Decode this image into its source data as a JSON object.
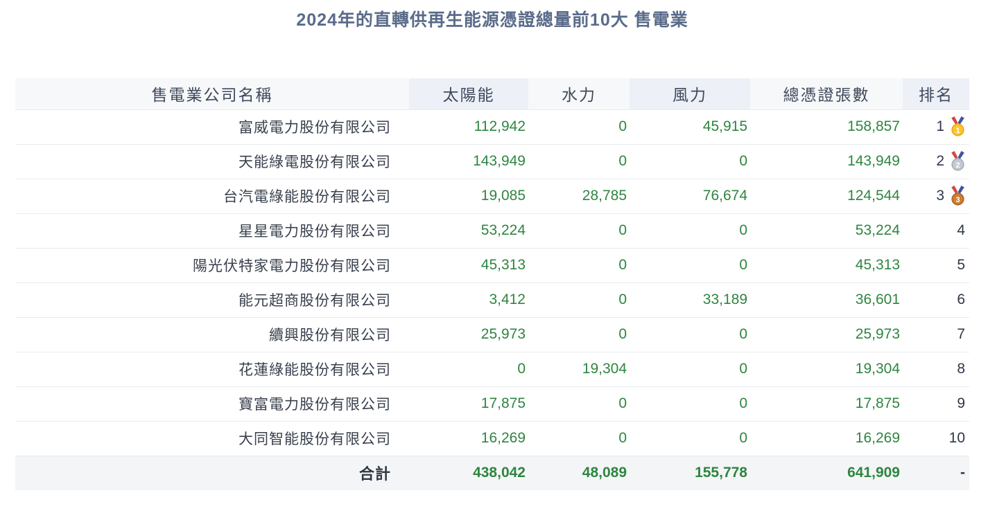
{
  "title": "2024年的直轉供再生能源憑證總量前10大 售電業",
  "chart_data": {
    "type": "table",
    "title": "2024年的直轉供再生能源憑證總量前10大 售電業",
    "columns": [
      "售電業公司名稱",
      "太陽能",
      "水力",
      "風力",
      "總憑證張數",
      "排名"
    ],
    "rows": [
      {
        "company": "富威電力股份有限公司",
        "solar": 112942,
        "hydro": 0,
        "wind": 45915,
        "total": 158857,
        "rank": 1,
        "medal": "gold"
      },
      {
        "company": "天能綠電股份有限公司",
        "solar": 143949,
        "hydro": 0,
        "wind": 0,
        "total": 143949,
        "rank": 2,
        "medal": "silver"
      },
      {
        "company": "台汽電綠能股份有限公司",
        "solar": 19085,
        "hydro": 28785,
        "wind": 76674,
        "total": 124544,
        "rank": 3,
        "medal": "bronze"
      },
      {
        "company": "星星電力股份有限公司",
        "solar": 53224,
        "hydro": 0,
        "wind": 0,
        "total": 53224,
        "rank": 4,
        "medal": null
      },
      {
        "company": "陽光伏特家電力股份有限公司",
        "solar": 45313,
        "hydro": 0,
        "wind": 0,
        "total": 45313,
        "rank": 5,
        "medal": null
      },
      {
        "company": "能元超商股份有限公司",
        "solar": 3412,
        "hydro": 0,
        "wind": 33189,
        "total": 36601,
        "rank": 6,
        "medal": null
      },
      {
        "company": "續興股份有限公司",
        "solar": 25973,
        "hydro": 0,
        "wind": 0,
        "total": 25973,
        "rank": 7,
        "medal": null
      },
      {
        "company": "花蓮綠能股份有限公司",
        "solar": 0,
        "hydro": 19304,
        "wind": 0,
        "total": 19304,
        "rank": 8,
        "medal": null
      },
      {
        "company": "寶富電力股份有限公司",
        "solar": 17875,
        "hydro": 0,
        "wind": 0,
        "total": 17875,
        "rank": 9,
        "medal": null
      },
      {
        "company": "大同智能股份有限公司",
        "solar": 16269,
        "hydro": 0,
        "wind": 0,
        "total": 16269,
        "rank": 10,
        "medal": null
      }
    ],
    "totals": {
      "label": "合計",
      "solar": 438042,
      "hydro": 48089,
      "wind": 155778,
      "total": 641909,
      "rank": "-"
    }
  },
  "colors": {
    "title_text": "#5a6b8a",
    "header_text": "#3e4a5c",
    "company_text": "#38404d",
    "value_green": "#2e8540",
    "rank_text": "#2d3748",
    "header_bg": "#f7f8fa",
    "header_bg_alt": "#edf0f7",
    "total_row_bg": "#f4f5f7",
    "row_border": "#e9ebee",
    "medals": {
      "gold": {
        "circle": "#fdc62e",
        "rim": "#e9a51a",
        "ribbon_left": "#d64541",
        "ribbon_right": "#4053a3",
        "number": "#ffffff"
      },
      "silver": {
        "circle": "#c3cad1",
        "rim": "#a3acb6",
        "ribbon_left": "#d64541",
        "ribbon_right": "#4053a3",
        "number": "#ffffff"
      },
      "bronze": {
        "circle": "#cd7f32",
        "rim": "#a8662a",
        "ribbon_left": "#d64541",
        "ribbon_right": "#4053a3",
        "number": "#ffffff"
      }
    }
  }
}
